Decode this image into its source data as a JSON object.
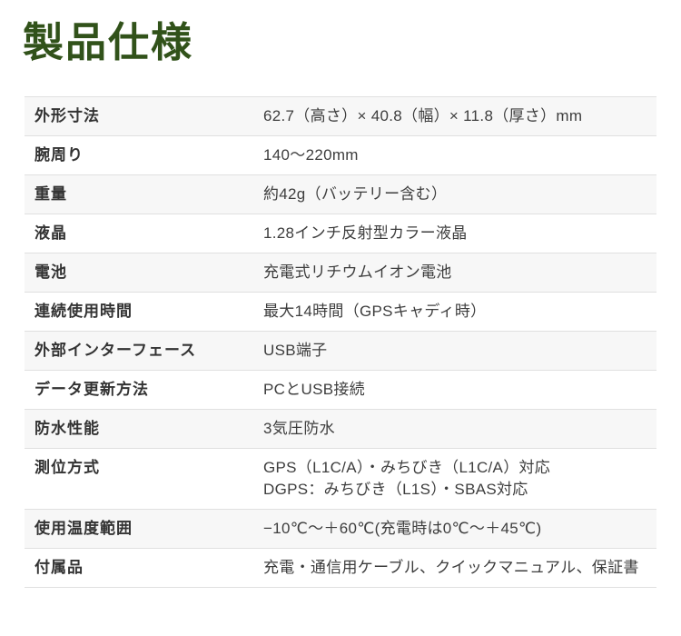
{
  "page": {
    "title": "製品仕様",
    "accent_color": "#31521a",
    "stripe_color": "#f7f7f7",
    "divider_color": "#e0e0e0"
  },
  "table": {
    "rows": [
      {
        "label": "外形寸法",
        "value_lines": [
          "62.7（高さ）× 40.8（幅）× 11.8（厚さ）mm"
        ]
      },
      {
        "label": "腕周り",
        "value_lines": [
          "140〜220mm"
        ]
      },
      {
        "label": "重量",
        "value_lines": [
          "約42g（バッテリー含む）"
        ]
      },
      {
        "label": "液晶",
        "value_lines": [
          "1.28インチ反射型カラー液晶"
        ]
      },
      {
        "label": "電池",
        "value_lines": [
          "充電式リチウムイオン電池"
        ]
      },
      {
        "label": "連続使用時間",
        "value_lines": [
          "最大14時間（GPSキャディ時）"
        ]
      },
      {
        "label": "外部インターフェース",
        "value_lines": [
          "USB端子"
        ]
      },
      {
        "label": "データ更新方法",
        "value_lines": [
          "PCとUSB接続"
        ]
      },
      {
        "label": "防水性能",
        "value_lines": [
          "3気圧防水"
        ]
      },
      {
        "label": "測位方式",
        "value_lines": [
          "GPS（L1C/A）・みちびき（L1C/A）対応",
          "DGPS：みちびき（L1S）・SBAS対応"
        ]
      },
      {
        "label": "使用温度範囲",
        "value_lines": [
          "−10℃〜＋60℃(充電時は0℃〜＋45℃)"
        ]
      },
      {
        "label": "付属品",
        "value_lines": [
          "充電・通信用ケーブル、クイックマニュアル、保証書"
        ]
      }
    ]
  }
}
